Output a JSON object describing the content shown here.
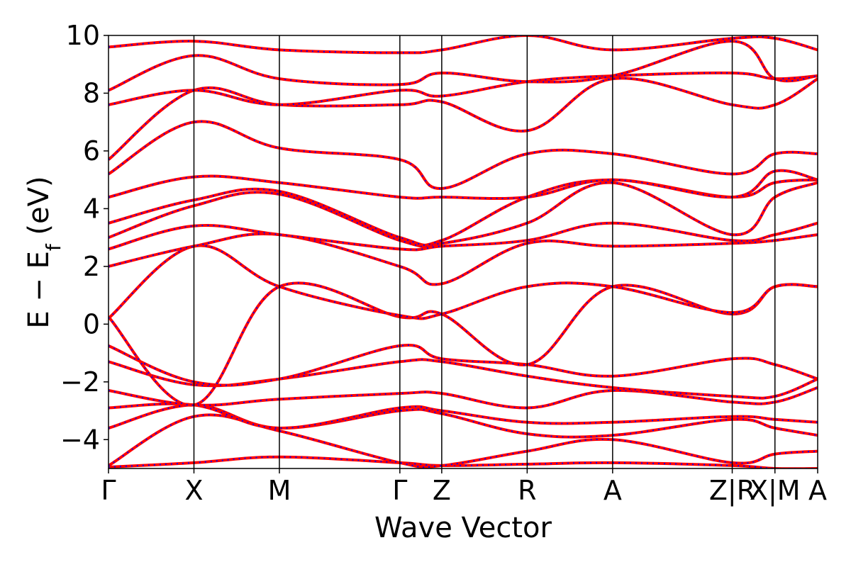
{
  "chart_data": {
    "type": "line",
    "xlabel": "Wave Vector",
    "ylabel": "E − E",
    "ylabel_sub": "f",
    "ylabel_unit": " (eV)",
    "ylim": [
      -5,
      10
    ],
    "yticks": [
      -4,
      -2,
      0,
      2,
      4,
      6,
      8,
      10
    ],
    "ytick_labels": [
      "−4",
      "−2",
      "0",
      "2",
      "4",
      "6",
      "8",
      "10"
    ],
    "kpoints": [
      {
        "label": "Γ",
        "x": 0.0
      },
      {
        "label": "X",
        "x": 1.0
      },
      {
        "label": "M",
        "x": 2.0
      },
      {
        "label": "Γ",
        "x": 3.41
      },
      {
        "label": "Z",
        "x": 3.9
      },
      {
        "label": "R",
        "x": 4.9
      },
      {
        "label": "A",
        "x": 5.9
      },
      {
        "label": "Z|R",
        "x": 7.3
      },
      {
        "label": "X|M",
        "x": 7.8
      },
      {
        "label": "A",
        "x": 8.3
      }
    ],
    "xlim": [
      0,
      8.3
    ],
    "grid": false,
    "legend": "none",
    "series_colors": {
      "line_a": "#ff0000",
      "line_b": "#0000ff"
    },
    "bands": [
      {
        "values": [
          -4.95,
          -4.8,
          -4.6,
          -4.8,
          -4.9,
          -4.85,
          -4.8,
          -4.9,
          -5.0,
          -5.0
        ]
      },
      {
        "values": [
          -4.9,
          -3.2,
          -3.7,
          -4.8,
          -4.9,
          -4.4,
          -4.0,
          -4.8,
          -4.5,
          -4.4
        ]
      },
      {
        "values": [
          -3.6,
          -2.8,
          -3.6,
          -3.0,
          -3.1,
          -3.8,
          -3.85,
          -3.3,
          -3.6,
          -3.85
        ]
      },
      {
        "values": [
          -2.9,
          -2.8,
          -3.6,
          -2.9,
          -3.0,
          -3.4,
          -3.4,
          -3.2,
          -3.3,
          -3.4
        ]
      },
      {
        "values": [
          -2.3,
          -2.8,
          -2.6,
          -2.4,
          -2.4,
          -2.9,
          -2.3,
          -2.7,
          -2.7,
          -2.2
        ]
      },
      {
        "values": [
          -1.3,
          -2.1,
          -1.9,
          -1.3,
          -1.3,
          -1.8,
          -2.2,
          -2.5,
          -2.5,
          -1.9
        ]
      },
      {
        "values": [
          -0.75,
          -2.0,
          -1.9,
          -0.75,
          -1.2,
          -1.4,
          -1.8,
          -1.2,
          -1.4,
          -1.9
        ]
      },
      {
        "values": [
          0.25,
          -2.8,
          1.3,
          0.25,
          0.35,
          -1.4,
          1.3,
          0.35,
          1.3,
          1.3
        ]
      },
      {
        "values": [
          0.2,
          2.7,
          1.3,
          0.3,
          0.35,
          1.3,
          1.3,
          0.4,
          1.3,
          1.3
        ]
      },
      {
        "values": [
          2.0,
          2.7,
          3.1,
          2.0,
          1.4,
          2.8,
          2.7,
          2.8,
          2.9,
          3.1
        ]
      },
      {
        "values": [
          2.6,
          3.4,
          3.1,
          2.6,
          2.7,
          2.9,
          3.5,
          2.9,
          3.1,
          3.5
        ]
      },
      {
        "values": [
          3.0,
          4.1,
          4.5,
          2.9,
          2.8,
          3.5,
          4.9,
          3.1,
          4.4,
          4.9
        ]
      },
      {
        "values": [
          3.5,
          4.3,
          4.6,
          3.0,
          2.9,
          4.4,
          5.0,
          4.4,
          4.9,
          5.0
        ]
      },
      {
        "values": [
          4.4,
          5.1,
          4.9,
          4.4,
          4.4,
          4.4,
          5.0,
          4.4,
          5.3,
          5.0
        ]
      },
      {
        "values": [
          5.2,
          7.0,
          6.1,
          5.7,
          4.7,
          5.9,
          5.9,
          5.2,
          5.9,
          5.9
        ]
      },
      {
        "values": [
          5.7,
          8.1,
          7.6,
          7.6,
          7.7,
          6.7,
          8.5,
          7.6,
          7.6,
          8.5
        ]
      },
      {
        "values": [
          7.6,
          8.1,
          7.6,
          8.1,
          7.9,
          8.4,
          8.6,
          8.7,
          8.5,
          8.6
        ]
      },
      {
        "values": [
          8.1,
          9.3,
          8.5,
          8.3,
          8.7,
          8.4,
          8.6,
          9.8,
          8.5,
          8.6
        ]
      },
      {
        "values": [
          9.6,
          9.8,
          9.5,
          9.4,
          9.5,
          10.0,
          9.5,
          9.9,
          9.9,
          9.5
        ]
      }
    ]
  }
}
